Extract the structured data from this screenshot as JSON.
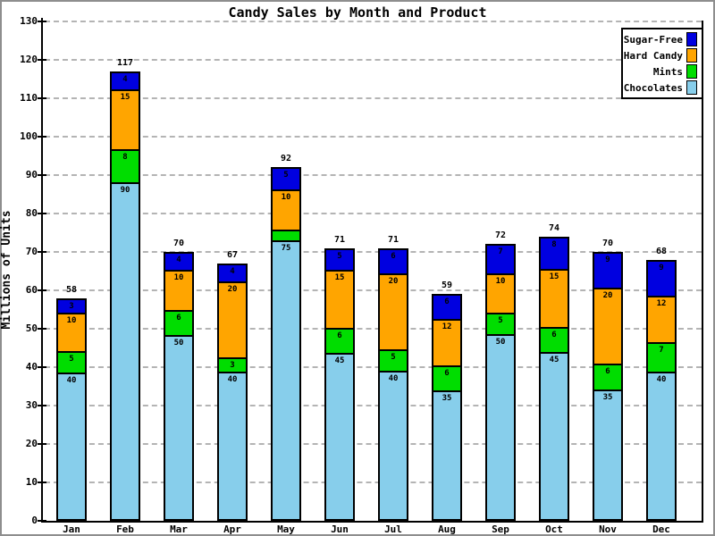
{
  "chart_data": {
    "type": "bar",
    "stacked": true,
    "title": "Candy Sales by Month and Product",
    "xlabel": "",
    "ylabel": "Millions of Units",
    "ylim": [
      0,
      130
    ],
    "ytick_step": 10,
    "yticks": [
      0,
      10,
      20,
      30,
      40,
      50,
      60,
      70,
      80,
      90,
      100,
      110,
      120,
      130
    ],
    "grid": true,
    "grid_style": "dashed",
    "grid_color": "#b4b4b4",
    "axis_color": "#000000",
    "background_color": "#ffffff",
    "border_color": "#8e8e8e",
    "legend_position": "top-right",
    "categories": [
      "Jan",
      "Feb",
      "Mar",
      "Apr",
      "May",
      "Jun",
      "Jul",
      "Aug",
      "Sep",
      "Oct",
      "Nov",
      "Dec"
    ],
    "totals": [
      58,
      117,
      70,
      67,
      92,
      71,
      71,
      59,
      72,
      74,
      70,
      68
    ],
    "series": [
      {
        "name": "Sugar-Free",
        "color": "#0000E0",
        "values": [
          3,
          4,
          4,
          4,
          5,
          5,
          6,
          6,
          7,
          8,
          9,
          9
        ]
      },
      {
        "name": "Hard Candy",
        "color": "#FFA500",
        "values": [
          10,
          15,
          10,
          20,
          10,
          15,
          20,
          12,
          10,
          15,
          20,
          12
        ]
      },
      {
        "name": "Mints",
        "color": "#00DD00",
        "values": [
          5,
          8,
          6,
          3,
          2,
          6,
          5,
          6,
          5,
          6,
          6,
          7
        ]
      },
      {
        "name": "Chocolates",
        "color": "#87CEEB",
        "values": [
          40,
          90,
          50,
          40,
          75,
          45,
          40,
          35,
          50,
          45,
          35,
          40
        ]
      }
    ],
    "stack_order_bottom_to_top": [
      "Chocolates",
      "Mints",
      "Hard Candy",
      "Sugar-Free"
    ],
    "segment_labels_shown": true
  }
}
